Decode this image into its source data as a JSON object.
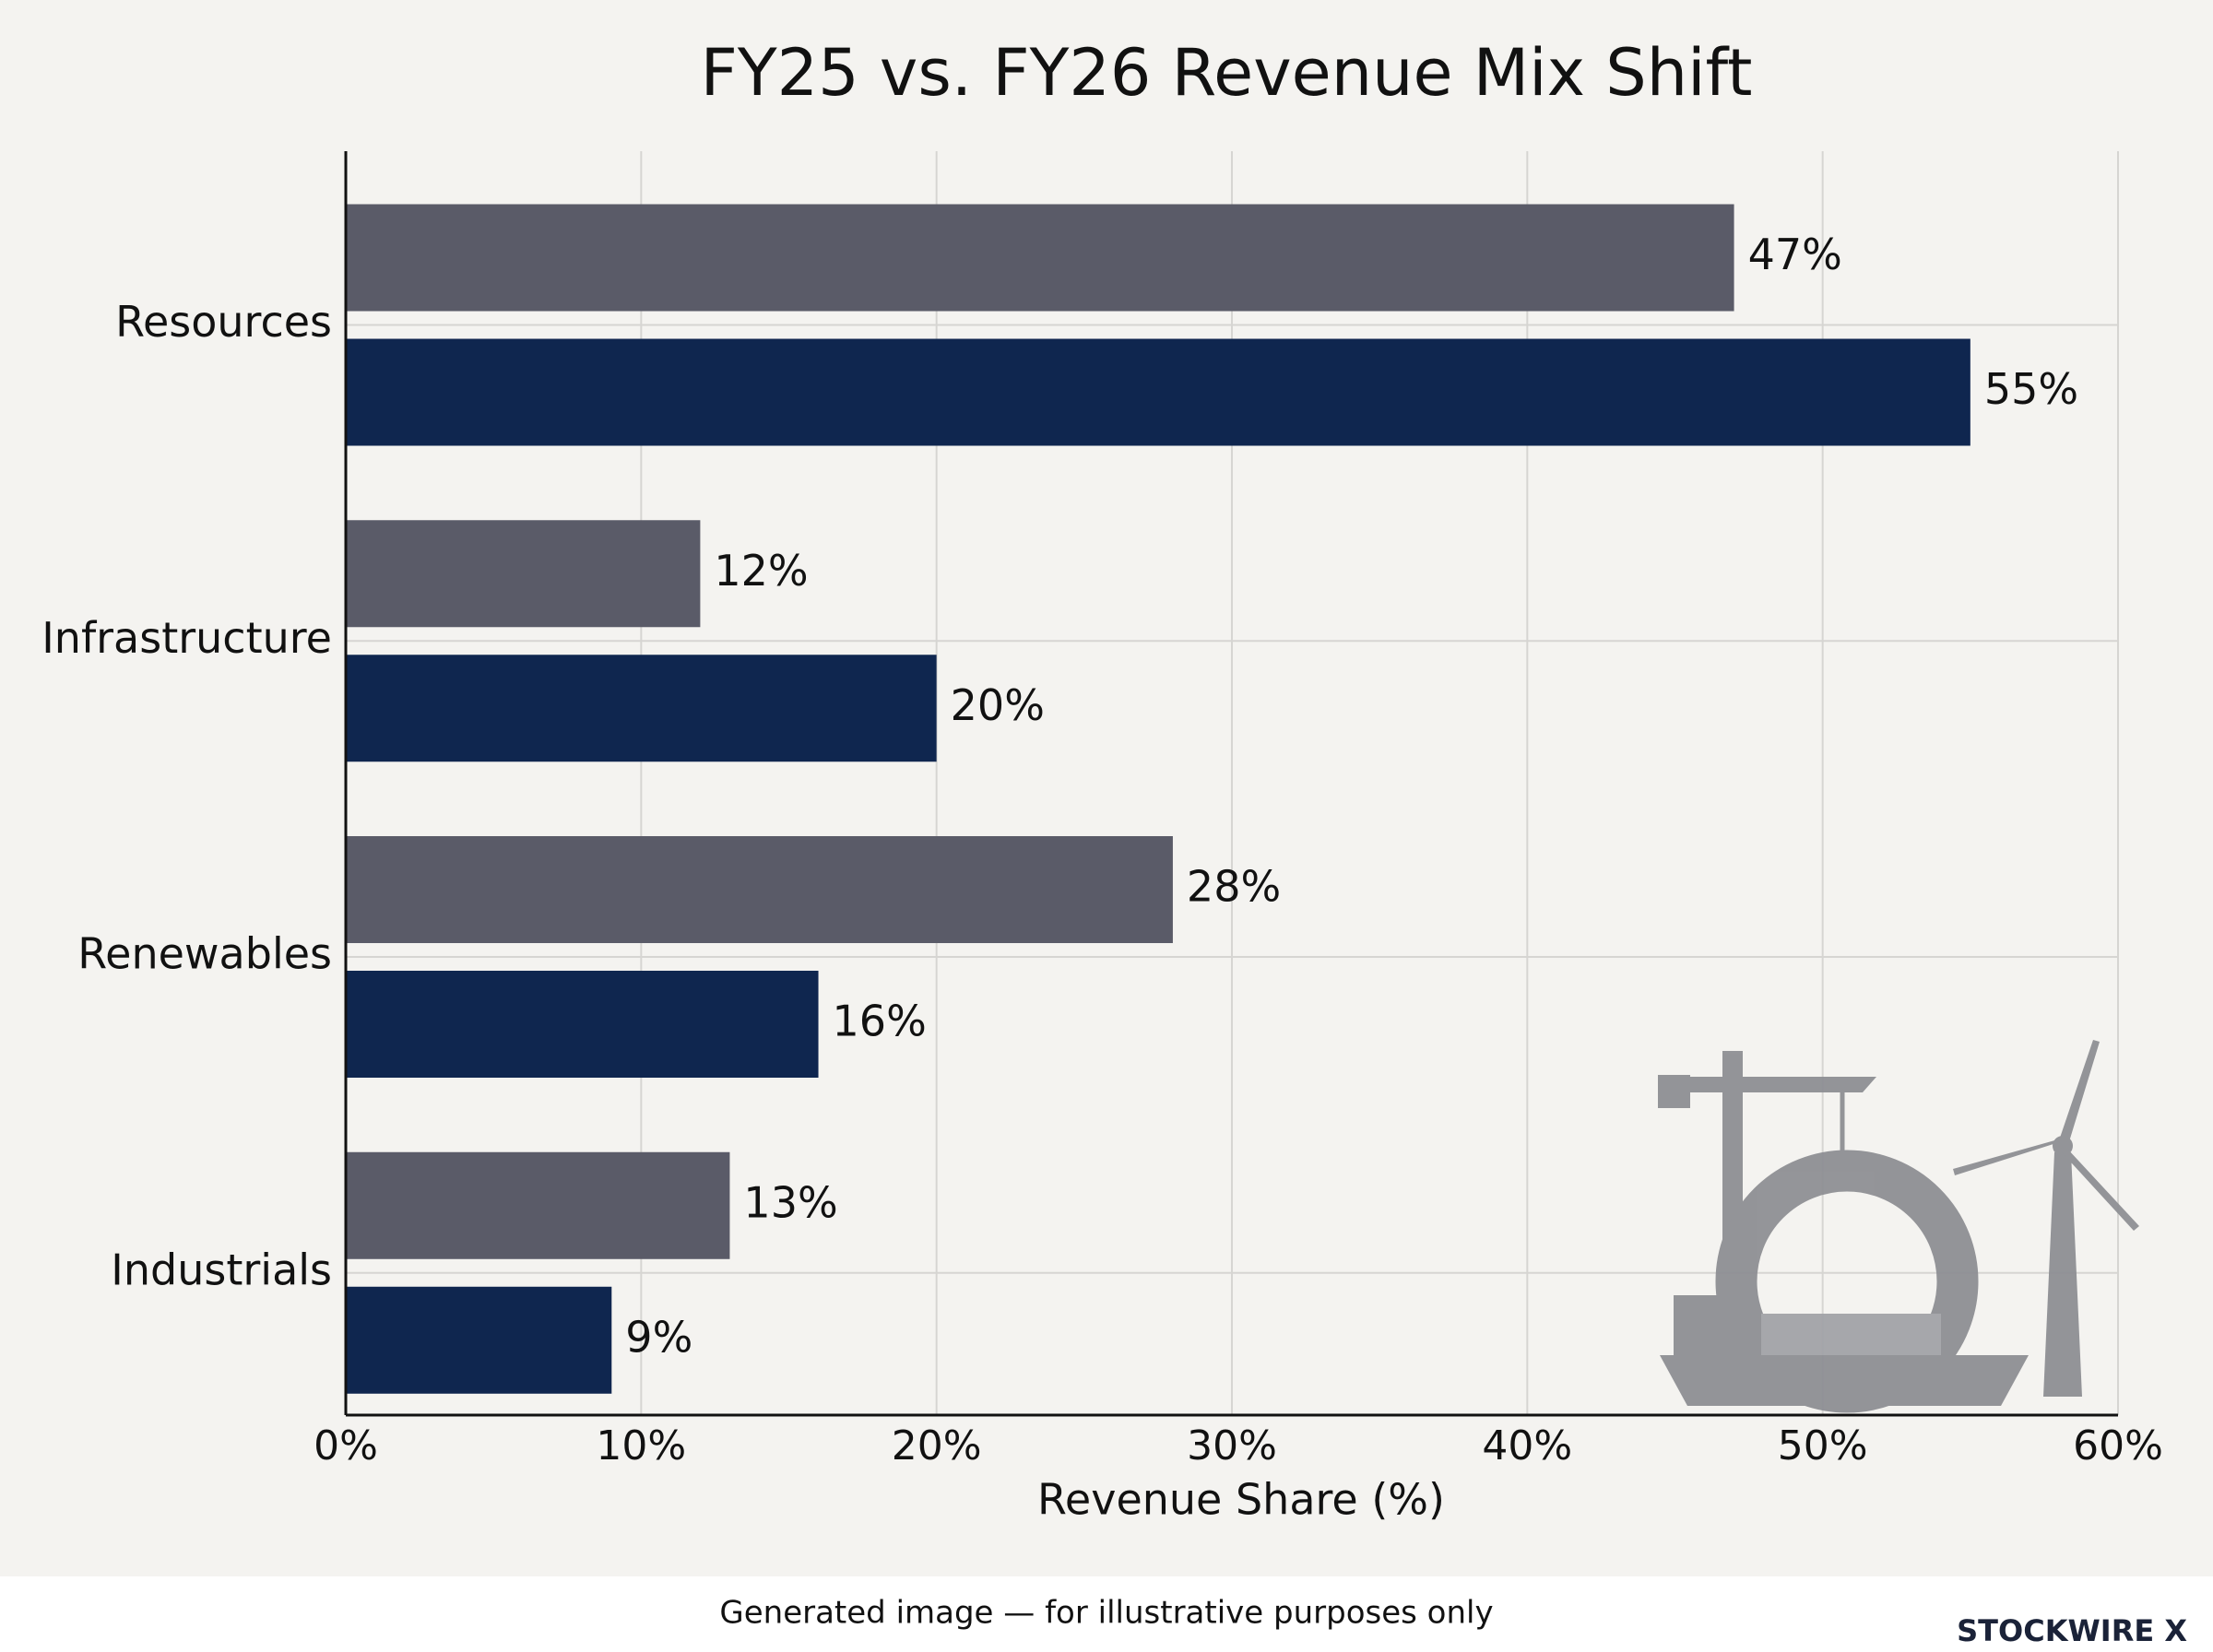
{
  "chart_data": {
    "type": "hbar",
    "title": "FY25 vs. FY26 Revenue Mix Shift",
    "x_label": "Revenue Share (%)",
    "categories": [
      "Resources",
      "Infrastructure",
      "Renewables",
      "Industrials"
    ],
    "series": [
      {
        "color": "#5a5b68",
        "values": [
          47,
          12,
          28,
          13
        ],
        "value_labels": [
          "47%",
          "12%",
          "28%",
          "13%"
        ]
      },
      {
        "color": "#0f264f",
        "values": [
          55,
          20,
          16,
          9
        ],
        "value_labels": [
          "55%",
          "20%",
          "16%",
          "9%"
        ]
      }
    ],
    "xlim": [
      0,
      60
    ],
    "xticks": [
      {
        "value": 0,
        "label": "0%"
      },
      {
        "value": 10,
        "label": "10%"
      },
      {
        "value": 20,
        "label": "20%"
      },
      {
        "value": 30,
        "label": "30%"
      },
      {
        "value": 40,
        "label": "40%"
      },
      {
        "value": 50,
        "label": "50%"
      },
      {
        "value": 60,
        "label": "60%"
      }
    ],
    "grid": true
  },
  "footer": {
    "note": "Generated image — for illustrative purposes only",
    "brand": "STOCKWIRE X"
  }
}
